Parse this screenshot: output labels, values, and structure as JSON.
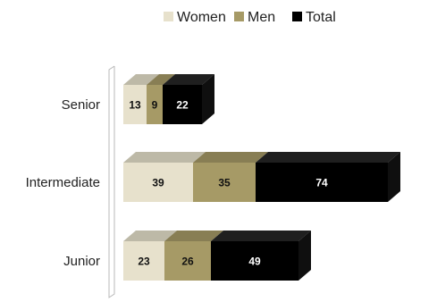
{
  "chart_data": {
    "type": "bar",
    "orientation": "horizontal",
    "stacked": true,
    "three_d": true,
    "categories": [
      "Senior",
      "Intermediate",
      "Junior"
    ],
    "series": [
      {
        "name": "Women",
        "values": [
          13,
          39,
          23
        ],
        "color": "#e7e1cc",
        "label_color": "#111111"
      },
      {
        "name": "Men",
        "values": [
          9,
          35,
          26
        ],
        "color": "#a69a66",
        "label_color": "#111111"
      },
      {
        "name": "Total",
        "values": [
          22,
          74,
          49
        ],
        "color": "#000000",
        "label_color": "#ffffff"
      }
    ],
    "title": "",
    "xlabel": "",
    "ylabel": "",
    "xlim": [
      0,
      165
    ],
    "grid": false,
    "legend_position": "top-center",
    "data_labels": true
  }
}
